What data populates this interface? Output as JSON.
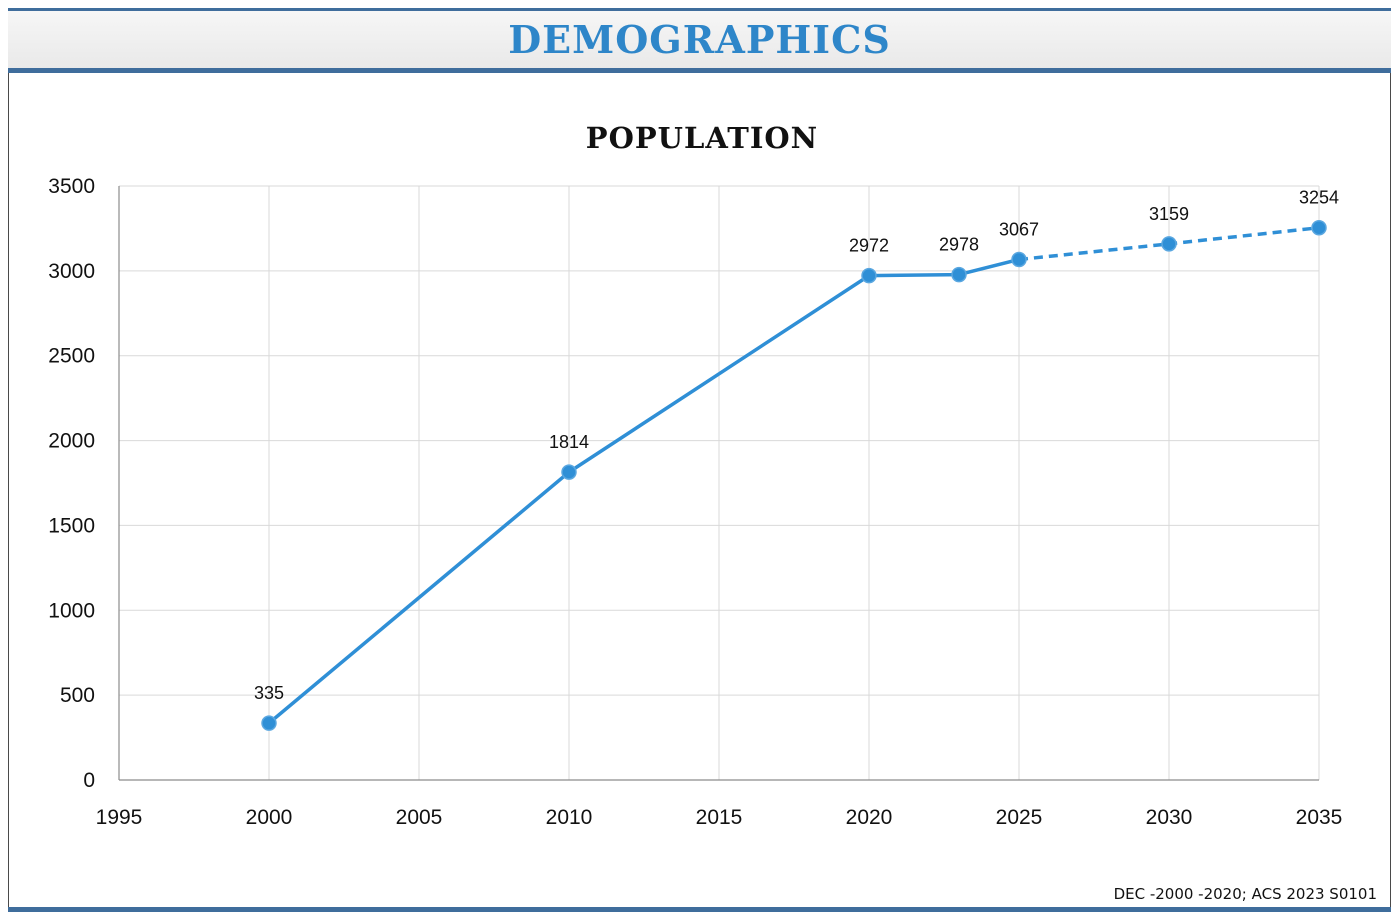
{
  "header": {
    "title": "DEMOGRAPHICS"
  },
  "source_note": "DEC -2000 -2020; ACS 2023 S0101",
  "colors": {
    "accent": "#2e86c9",
    "series": "#2f8fd6",
    "header_border": "#3f6d9c"
  },
  "chart_data": {
    "type": "line",
    "title": "POPULATION",
    "xlabel": "",
    "ylabel": "",
    "xlim": [
      1995,
      2035
    ],
    "ylim": [
      0,
      3500
    ],
    "x_ticks": [
      1995,
      2000,
      2005,
      2010,
      2015,
      2020,
      2025,
      2030,
      2035
    ],
    "y_ticks": [
      0,
      500,
      1000,
      1500,
      2000,
      2500,
      3000,
      3500
    ],
    "grid": true,
    "legend": "none",
    "series": [
      {
        "line_style": "solid",
        "points": [
          {
            "x": 2000,
            "y": 335
          },
          {
            "x": 2010,
            "y": 1814
          },
          {
            "x": 2020,
            "y": 2972
          },
          {
            "x": 2023,
            "y": 2978
          },
          {
            "x": 2025,
            "y": 3067
          }
        ]
      },
      {
        "line_style": "dashed",
        "points": [
          {
            "x": 2025,
            "y": 3067
          },
          {
            "x": 2030,
            "y": 3159
          },
          {
            "x": 2035,
            "y": 3254
          }
        ]
      }
    ],
    "data_labels": [
      {
        "x": 2000,
        "y": 335,
        "text": "335"
      },
      {
        "x": 2010,
        "y": 1814,
        "text": "1814"
      },
      {
        "x": 2020,
        "y": 2972,
        "text": "2972"
      },
      {
        "x": 2023,
        "y": 2978,
        "text": "2978"
      },
      {
        "x": 2025,
        "y": 3067,
        "text": "3067"
      },
      {
        "x": 2030,
        "y": 3159,
        "text": "3159"
      },
      {
        "x": 2035,
        "y": 3254,
        "text": "3254"
      }
    ]
  }
}
